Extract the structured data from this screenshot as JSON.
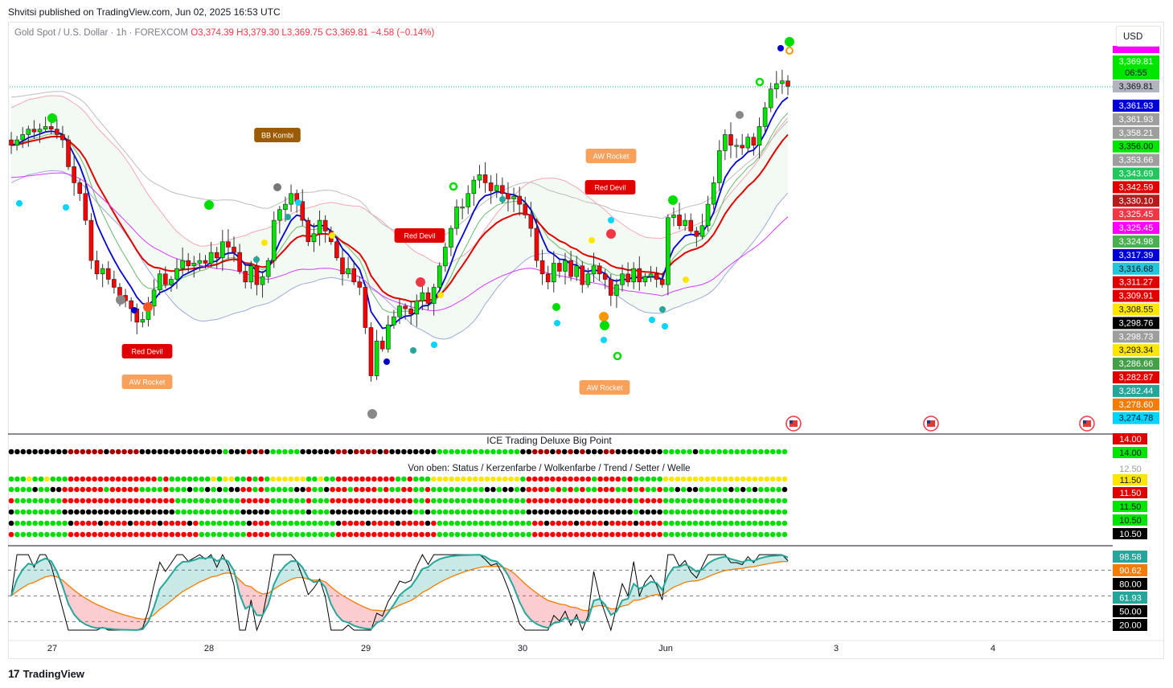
{
  "header": {
    "published": "Shvitsi published on TradingView.com, Jun 02, 2025 16:53 UTC"
  },
  "legend": {
    "symbol": "Gold Spot / U.S. Dollar · 1h · FOREXCOM",
    "open": "O3,374.39",
    "high": "H3,379.30",
    "low": "L3,369.75",
    "close": "C3,369.81",
    "change": "−4.58 (−0.14%)"
  },
  "currency_button": "USD",
  "footer": {
    "brand": "TradingView"
  },
  "colors": {
    "up": "#00e600",
    "down": "#ff0000",
    "blue": "#0000d6",
    "redline": "#e00000",
    "teal": "#26a69a",
    "orange": "#f57c00"
  },
  "chart_data": [
    {
      "type": "candlestick",
      "title": "Gold Spot / U.S. Dollar · 1h · FOREXCOM",
      "x_ticks": [
        "27",
        "28",
        "29",
        "30",
        "Jun",
        "3",
        "4"
      ],
      "closes": [
        3348,
        3350,
        3352,
        3354,
        3353,
        3354,
        3355,
        3354,
        3352,
        3350,
        3340,
        3334,
        3330,
        3320,
        3305,
        3300,
        3302,
        3298,
        3295,
        3292,
        3290,
        3287,
        3282,
        3283,
        3288,
        3294,
        3300,
        3296,
        3298,
        3302,
        3305,
        3303,
        3304,
        3305,
        3304,
        3308,
        3306,
        3312,
        3310,
        3308,
        3301,
        3297,
        3303,
        3296,
        3299,
        3305,
        3320,
        3324,
        3326,
        3330,
        3327,
        3320,
        3312,
        3315,
        3320,
        3316,
        3312,
        3306,
        3300,
        3302,
        3297,
        3295,
        3280,
        3262,
        3275,
        3272,
        3281,
        3284,
        3288,
        3287,
        3285,
        3290,
        3293,
        3289,
        3295,
        3303,
        3310,
        3317,
        3325,
        3325,
        3330,
        3335,
        3337,
        3334,
        3331,
        3333,
        3330,
        3328,
        3329,
        3326,
        3322,
        3317,
        3305,
        3300,
        3297,
        3304,
        3301,
        3305,
        3299,
        3303,
        3296,
        3300,
        3303,
        3300,
        3298,
        3292,
        3296,
        3300,
        3297,
        3302,
        3297,
        3299,
        3300,
        3298,
        3296,
        3321,
        3322,
        3318,
        3320,
        3316,
        3314,
        3318,
        3326,
        3334,
        3346,
        3352,
        3348,
        3348,
        3347,
        3351,
        3348,
        3355,
        3362,
        3369,
        3371,
        3372,
        3370
      ],
      "current_price": 3369.81,
      "countdown": "06:55",
      "price_labels": [
        "3,369.81",
        "3,369.81",
        "3,361.93",
        "3,361.93",
        "3,358.21",
        "3,356.00",
        "3,353.66",
        "3,343.69",
        "3,342.59",
        "3,330.10",
        "3,325.45",
        "3,325.45",
        "3,324.98",
        "3,317.39",
        "3,316.68",
        "3,311.27",
        "3,309.91",
        "3,308.55",
        "3,298.76",
        "3,298.73",
        "3,293.34",
        "3,286.66",
        "3,282.87",
        "3,282.44",
        "3,278.60",
        "3,274.78"
      ],
      "signals": [
        "BB Kombi",
        "Red Devil",
        "Red Devil",
        "Red Devil",
        "AW Rocket",
        "AW Rocket",
        "AW Rocket"
      ]
    },
    {
      "type": "dot-matrix",
      "title": "ICE Trading Deluxe Big Point",
      "subtitle": "Von oben: Status / Kerzenfarbe / Wolkenfarbe / Trend / Setter / Welle",
      "axis_labels": [
        "14.00",
        "14.00",
        "12.50",
        "11.50",
        "11.50",
        "11.50",
        "10.50",
        "10.50"
      ]
    },
    {
      "type": "line",
      "axis_labels": [
        "98.58",
        "90.62",
        "80.00",
        "61.93",
        "50.00",
        "20.00"
      ],
      "levels": [
        80,
        50,
        20
      ]
    }
  ]
}
